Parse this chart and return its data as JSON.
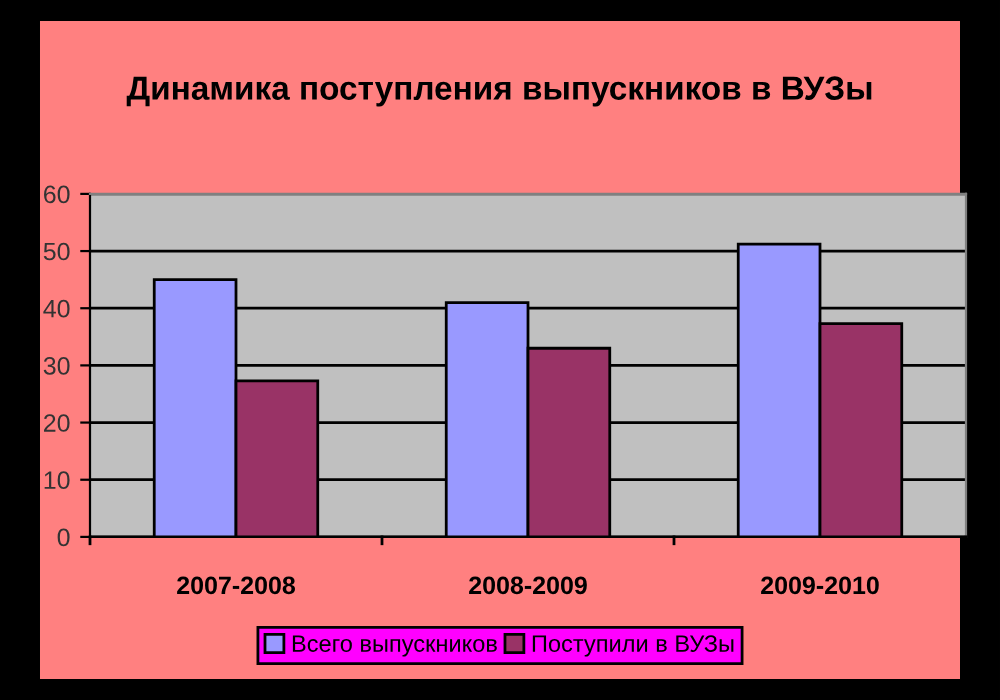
{
  "chart_data": {
    "type": "bar",
    "title": "Динамика поступления выпускников в ВУЗы",
    "categories": [
      "2007-2008",
      "2008-2009",
      "2009-2010"
    ],
    "series": [
      {
        "name": "Всего выпускников",
        "color": "#9999ff",
        "values": [
          45,
          41,
          51.2
        ]
      },
      {
        "name": "Поступили в ВУЗы",
        "color": "#993366",
        "values": [
          27.3,
          33,
          37.3
        ]
      }
    ],
    "ylim": [
      0,
      60
    ],
    "yticks": [
      0,
      10,
      20,
      30,
      40,
      50,
      60
    ],
    "grid": "y",
    "legend": "bottom"
  }
}
